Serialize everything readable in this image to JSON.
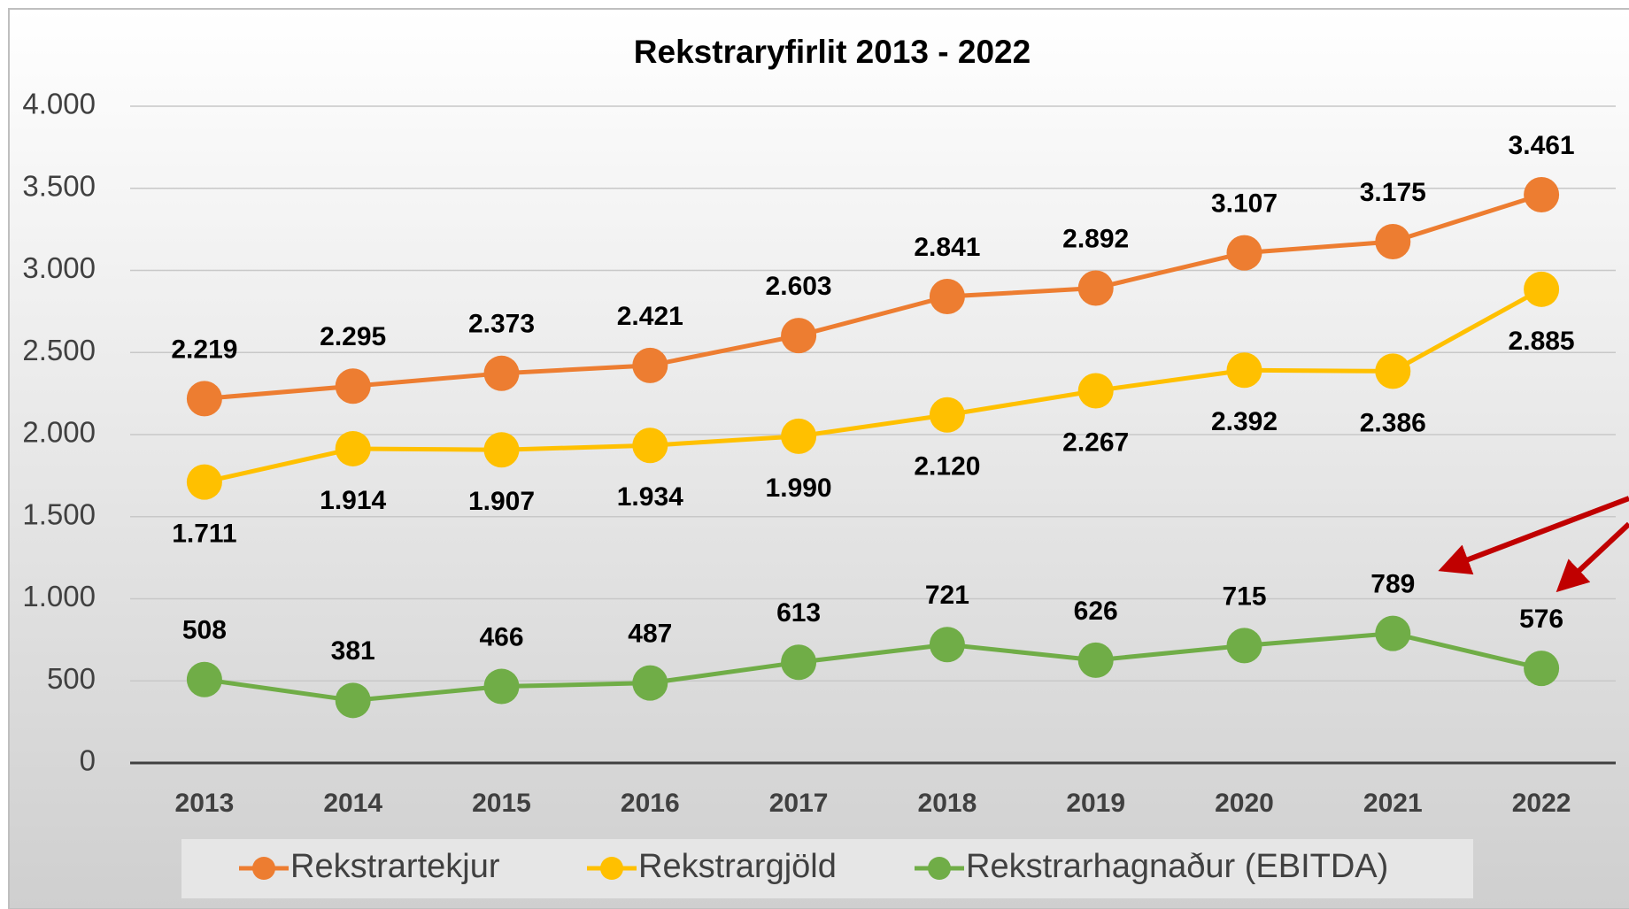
{
  "chart_data": {
    "type": "line",
    "title": "Rekstraryfirlit  2013 - 2022",
    "categories": [
      "2013",
      "2014",
      "2015",
      "2016",
      "2017",
      "2018",
      "2019",
      "2020",
      "2021",
      "2022"
    ],
    "series": [
      {
        "name": "Rekstrartekjur",
        "color": "#ed7d31",
        "values": [
          2219,
          2295,
          2373,
          2421,
          2603,
          2841,
          2892,
          3107,
          3175,
          3461
        ],
        "value_labels": [
          "2.219",
          "2.295",
          "2.373",
          "2.421",
          "2.603",
          "2.841",
          "2.892",
          "3.107",
          "3.175",
          "3.461"
        ]
      },
      {
        "name": "Rekstrargjöld",
        "color": "#ffc000",
        "values": [
          1711,
          1914,
          1907,
          1934,
          1990,
          2120,
          2267,
          2392,
          2386,
          2885
        ],
        "value_labels": [
          "1.711",
          "1.914",
          "1.907",
          "1.934",
          "1.990",
          "2.120",
          "2.267",
          "2.392",
          "2.386",
          "2.885"
        ]
      },
      {
        "name": "Rekstrarhagnaður (EBITDA)",
        "color": "#70ad47",
        "values": [
          508,
          381,
          466,
          487,
          613,
          721,
          626,
          715,
          789,
          576
        ]
      }
    ],
    "ylim": [
      0,
      4000
    ],
    "yticks": [
      0,
      500,
      {
        "value": 1000,
        "label": "1.000"
      },
      {
        "value": 1500,
        "label": "1.500"
      },
      {
        "value": 2000,
        "label": "2.000"
      },
      {
        "value": 2500,
        "label": "2.500"
      },
      {
        "value": 3000,
        "label": "3.000"
      },
      {
        "value": 3500,
        "label": "3.500"
      },
      {
        "value": 4000,
        "label": "4.000"
      }
    ],
    "grid": true,
    "legend": "bottom"
  }
}
